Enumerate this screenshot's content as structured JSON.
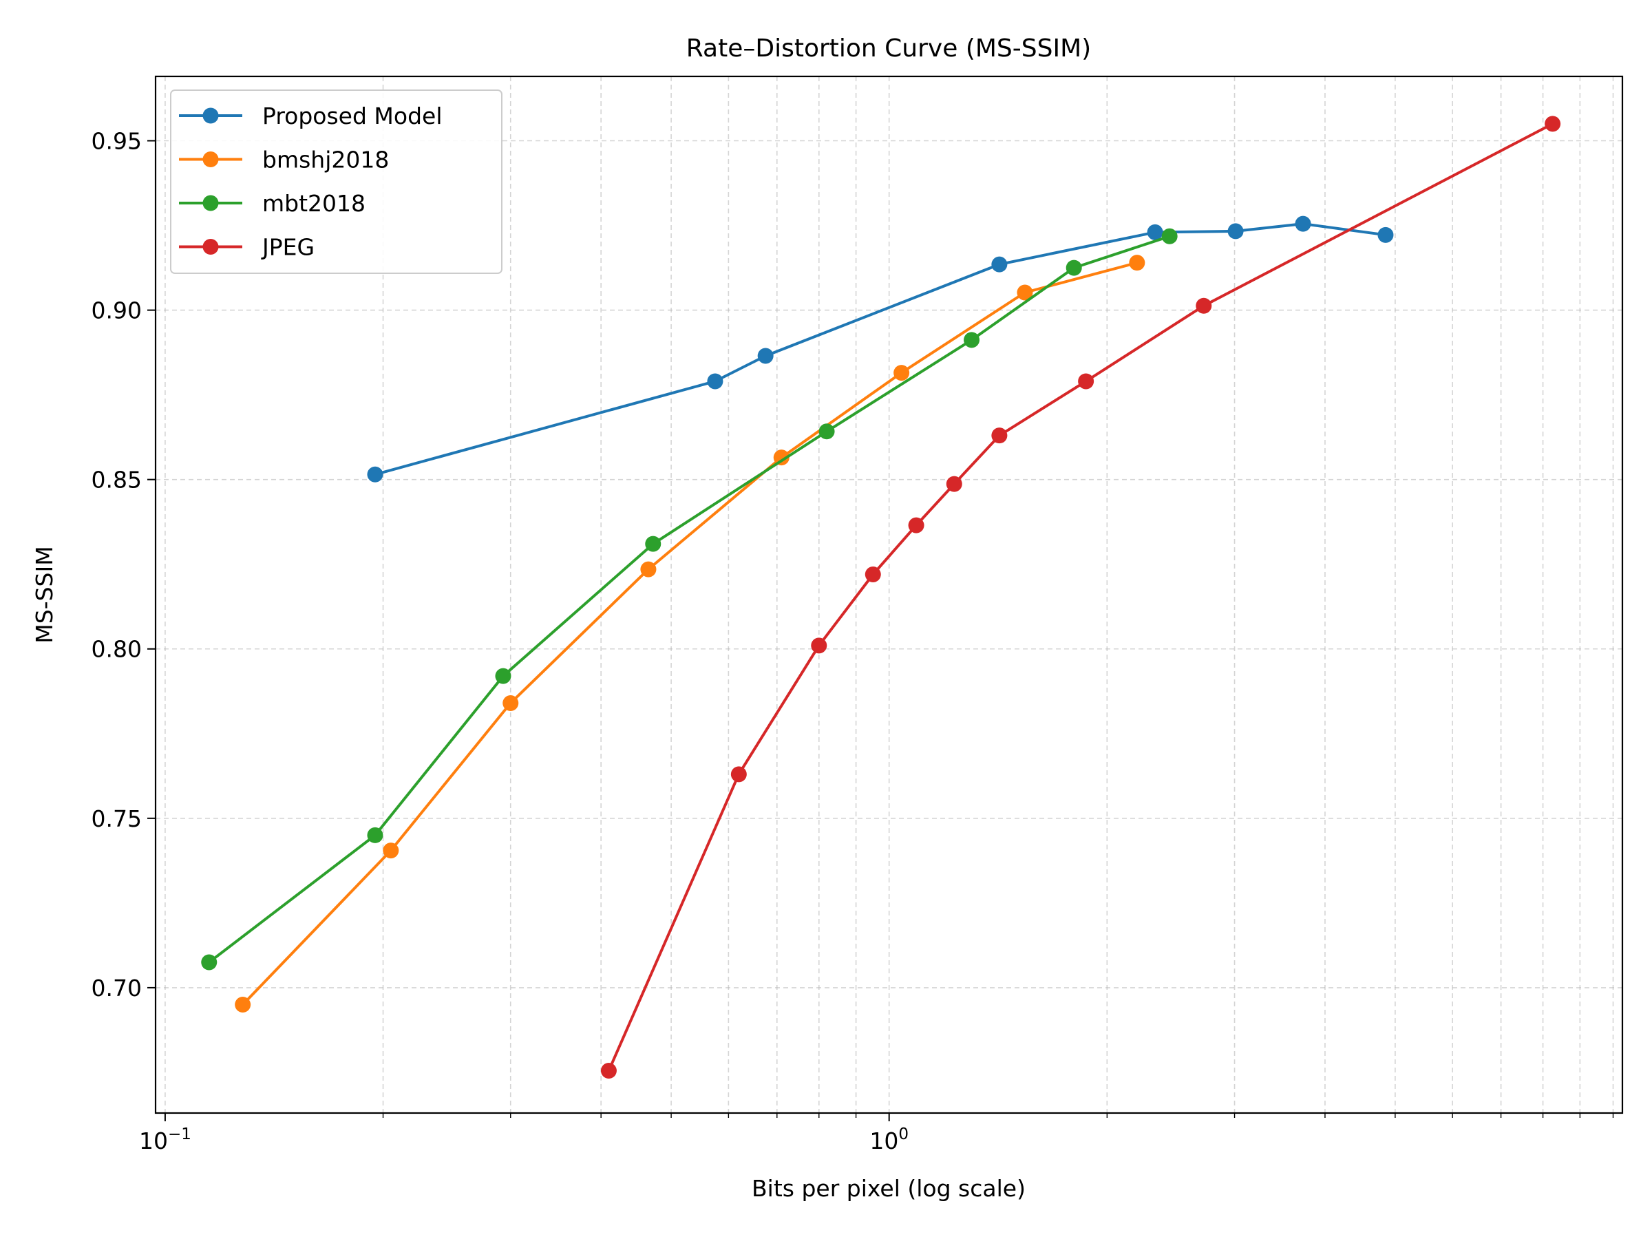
{
  "chart_data": {
    "type": "line",
    "title": "Rate–Distortion Curve (MS-SSIM)",
    "xlabel": "Bits per pixel (log scale)",
    "ylabel": "MS-SSIM",
    "x_scale": "log",
    "xlim": [
      0.097,
      10.3
    ],
    "ylim": [
      0.663,
      0.969
    ],
    "x_major_ticks": [
      {
        "value": 0.1,
        "base": "10",
        "exp": "−1"
      },
      {
        "value": 1,
        "base": "10",
        "exp": "0"
      }
    ],
    "x_minor_ticks": [
      0.2,
      0.3,
      0.4,
      0.5,
      0.6,
      0.7,
      0.8,
      0.9,
      2,
      3,
      4,
      5,
      6,
      7,
      8,
      9,
      10
    ],
    "y_ticks": [
      {
        "value": 0.7,
        "label": "0.70"
      },
      {
        "value": 0.75,
        "label": "0.75"
      },
      {
        "value": 0.8,
        "label": "0.80"
      },
      {
        "value": 0.85,
        "label": "0.85"
      },
      {
        "value": 0.9,
        "label": "0.90"
      },
      {
        "value": 0.95,
        "label": "0.95"
      }
    ],
    "grid": true,
    "legend_position": "top-left",
    "series": [
      {
        "name": "Proposed Model",
        "color": "#1f77b4",
        "x": [
          0.195,
          0.575,
          0.675,
          1.42,
          2.33,
          3.01,
          3.73,
          4.85
        ],
        "y": [
          0.8515,
          0.879,
          0.8865,
          0.9135,
          0.923,
          0.9233,
          0.9255,
          0.9222
        ]
      },
      {
        "name": "bmshj2018",
        "color": "#ff7f0e",
        "x": [
          0.128,
          0.205,
          0.3,
          0.465,
          0.71,
          1.04,
          1.54,
          2.2
        ],
        "y": [
          0.695,
          0.7405,
          0.784,
          0.8235,
          0.8565,
          0.8815,
          0.9052,
          0.914
        ]
      },
      {
        "name": "mbt2018",
        "color": "#2ca02c",
        "x": [
          0.115,
          0.195,
          0.293,
          0.472,
          0.82,
          1.3,
          1.8,
          2.44
        ],
        "y": [
          0.7075,
          0.745,
          0.792,
          0.831,
          0.8642,
          0.8912,
          0.9125,
          0.9218
        ]
      },
      {
        "name": "JPEG",
        "color": "#d62728",
        "x": [
          0.41,
          0.62,
          0.8,
          0.95,
          1.09,
          1.23,
          1.42,
          1.87,
          2.72,
          8.25
        ],
        "y": [
          0.6755,
          0.763,
          0.801,
          0.822,
          0.8365,
          0.8487,
          0.863,
          0.879,
          0.9013,
          0.955
        ]
      }
    ]
  }
}
